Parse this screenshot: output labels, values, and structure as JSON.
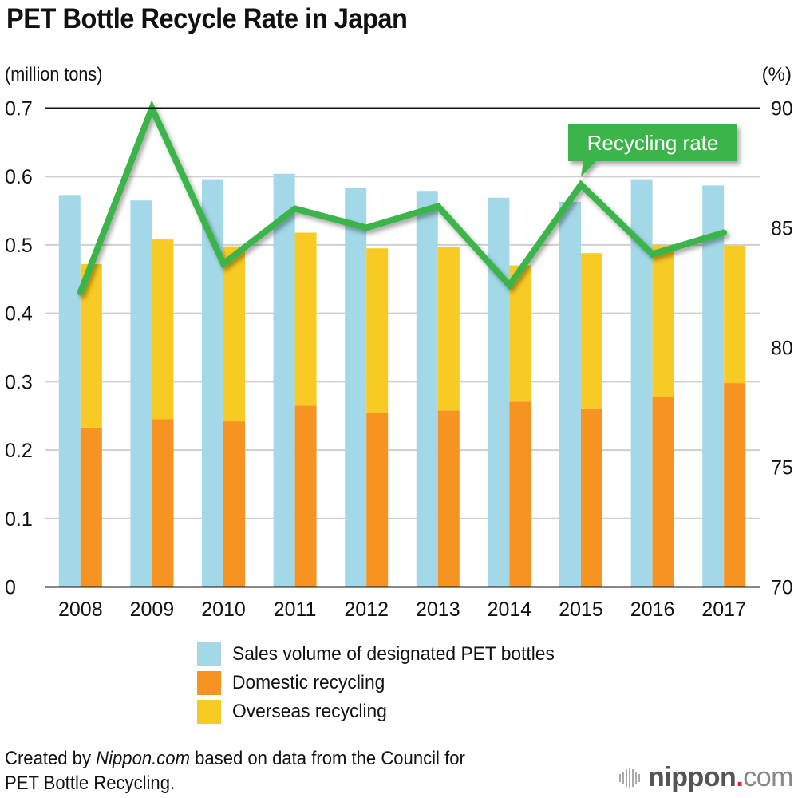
{
  "chart_data": {
    "type": "bar",
    "title": "PET Bottle Recycle Rate in Japan",
    "left_axis_label": "(million tons)",
    "right_axis_label": "(%)",
    "categories": [
      "2008",
      "2009",
      "2010",
      "2011",
      "2012",
      "2013",
      "2014",
      "2015",
      "2016",
      "2017"
    ],
    "left_ylim": [
      0,
      0.7
    ],
    "left_ticks": [
      "0",
      "0.1",
      "0.2",
      "0.3",
      "0.4",
      "0.5",
      "0.6",
      "0.7"
    ],
    "right_ylim": [
      70,
      90
    ],
    "right_ticks": [
      "70",
      "75",
      "80",
      "85",
      "90"
    ],
    "grid": true,
    "series": [
      {
        "name": "Sales volume of designated PET bottles",
        "type": "bar",
        "axis": "left",
        "color": "#a3d8e8",
        "values": [
          0.573,
          0.565,
          0.596,
          0.604,
          0.583,
          0.579,
          0.569,
          0.563,
          0.596,
          0.587
        ]
      },
      {
        "name": "Domestic recycling",
        "type": "stacked-bar",
        "axis": "left",
        "color": "#f79421",
        "values": [
          0.233,
          0.245,
          0.242,
          0.265,
          0.254,
          0.258,
          0.271,
          0.261,
          0.278,
          0.298
        ]
      },
      {
        "name": "Overseas recycling",
        "type": "stacked-bar",
        "axis": "left",
        "color": "#f8ca24",
        "values": [
          0.239,
          0.263,
          0.256,
          0.253,
          0.241,
          0.239,
          0.199,
          0.227,
          0.222,
          0.201
        ]
      },
      {
        "name": "Recycling rate",
        "type": "line",
        "axis": "right",
        "color": "#3bb54a",
        "values": [
          82.3,
          90.0,
          83.5,
          85.8,
          85.0,
          85.9,
          82.6,
          86.8,
          83.9,
          84.8
        ]
      }
    ],
    "annotation": {
      "text": "Recycling rate",
      "points_to": "2015"
    },
    "legend_position": "bottom"
  },
  "legend": [
    {
      "label": "Sales volume of designated PET bottles",
      "color": "#a3d8e8"
    },
    {
      "label": "Domestic recycling",
      "color": "#f79421"
    },
    {
      "label": "Overseas recycling",
      "color": "#f8ca24"
    }
  ],
  "footer": {
    "prefix": "Created by ",
    "brand_italic": "Nippon.com",
    "suffix": " based on data from the Council for",
    "line2": "PET Bottle Recycling."
  },
  "logo": {
    "strong": "nippon",
    "dot": ".",
    "light": "com"
  }
}
